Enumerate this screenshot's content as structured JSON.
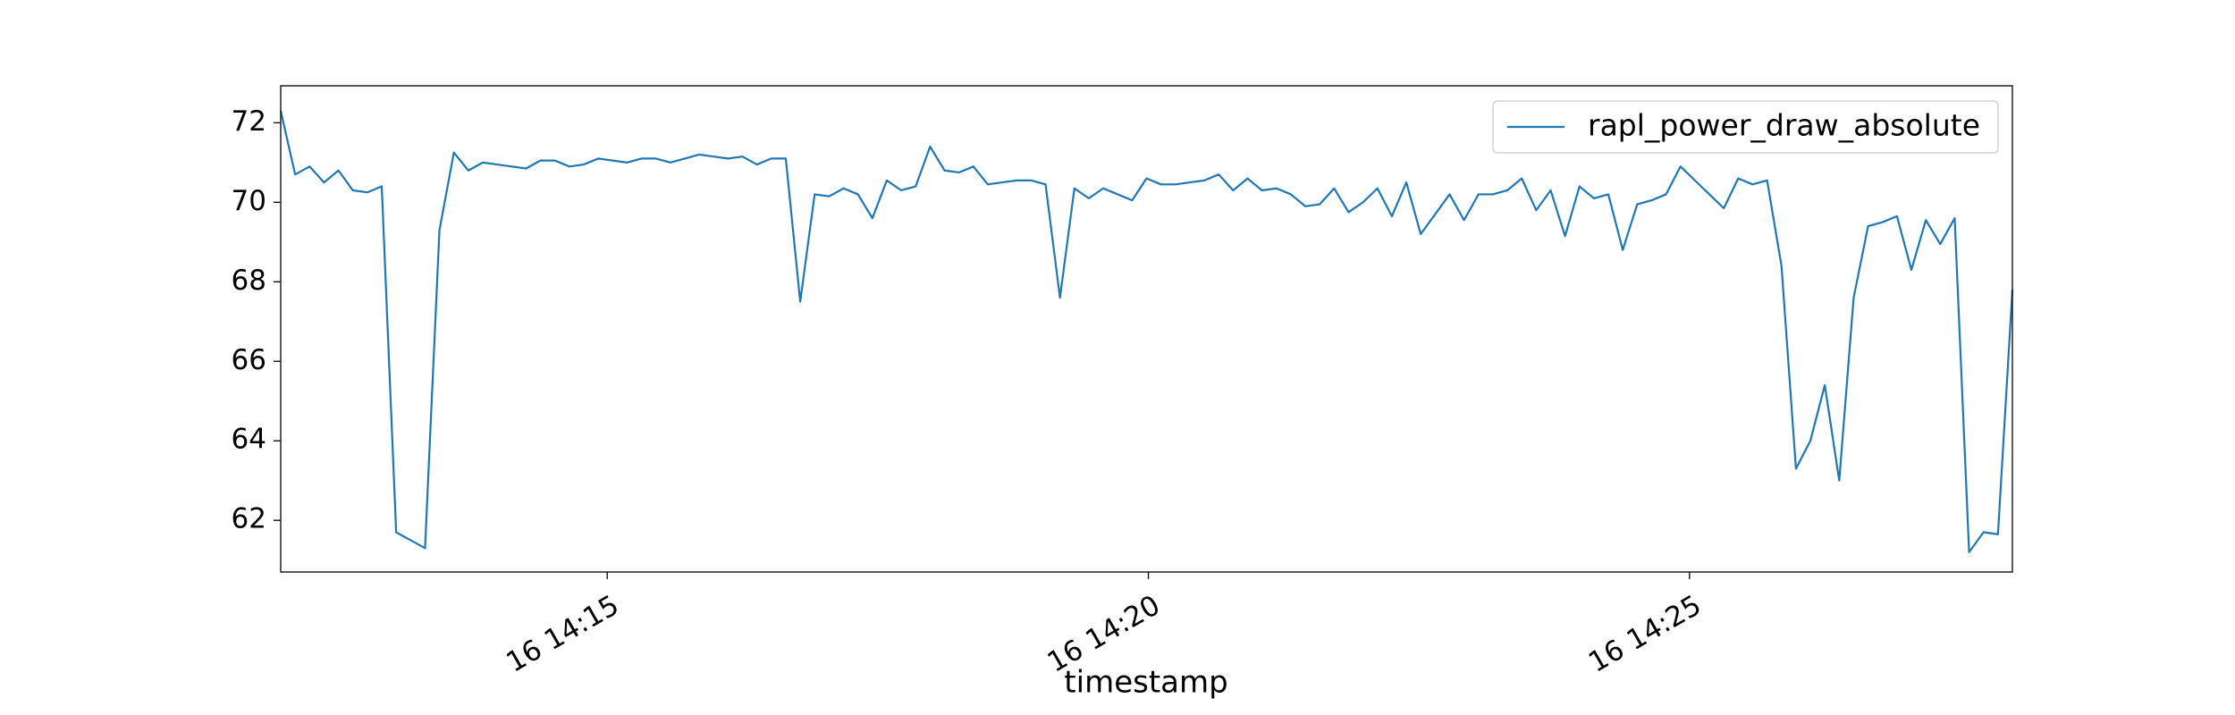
{
  "chart_data": {
    "type": "line",
    "x_label": "timestamp",
    "x": [
      719,
      727,
      735,
      743,
      751,
      759,
      767,
      775,
      783,
      791,
      799,
      807,
      815,
      823,
      831,
      839,
      847,
      855,
      863,
      871,
      879,
      887,
      895,
      903,
      911,
      919,
      927,
      935,
      943,
      951,
      959,
      967,
      975,
      983,
      991,
      999,
      1007,
      1015,
      1023,
      1031,
      1039,
      1047,
      1055,
      1063,
      1071,
      1079,
      1087,
      1095,
      1103,
      1111,
      1119,
      1127,
      1135,
      1143,
      1151,
      1159,
      1167,
      1175,
      1183,
      1191,
      1199,
      1207,
      1215,
      1223,
      1231,
      1239,
      1247,
      1255,
      1263,
      1271,
      1279,
      1287,
      1295,
      1303,
      1311,
      1319,
      1327,
      1335,
      1343,
      1351,
      1359,
      1367,
      1375,
      1383,
      1391,
      1399,
      1407,
      1415,
      1423,
      1431,
      1439,
      1447,
      1455,
      1463,
      1471,
      1479,
      1487,
      1495,
      1503,
      1511,
      1519,
      1527,
      1535,
      1543,
      1551,
      1559,
      1567,
      1575,
      1583,
      1591,
      1599,
      1607,
      1615,
      1623,
      1631,
      1639,
      1647,
      1655,
      1663,
      1671,
      1679
    ],
    "series": [
      {
        "name": "rapl_power_draw_absolute",
        "color": "#1f77b4",
        "values": [
          72.3,
          70.7,
          70.9,
          70.5,
          70.8,
          70.3,
          70.25,
          70.4,
          61.7,
          61.5,
          61.3,
          69.3,
          71.25,
          70.8,
          71.0,
          70.95,
          70.9,
          70.85,
          71.05,
          71.05,
          70.9,
          70.95,
          71.1,
          71.05,
          71.0,
          71.1,
          71.1,
          71.0,
          71.1,
          71.2,
          71.15,
          71.1,
          71.15,
          70.95,
          71.1,
          71.1,
          67.5,
          70.2,
          70.15,
          70.35,
          70.2,
          69.6,
          70.55,
          70.3,
          70.4,
          71.4,
          70.8,
          70.75,
          70.9,
          70.45,
          70.5,
          70.55,
          70.55,
          70.45,
          67.6,
          70.35,
          70.1,
          70.35,
          70.2,
          70.05,
          70.6,
          70.45,
          70.45,
          70.5,
          70.55,
          70.7,
          70.3,
          70.6,
          70.3,
          70.35,
          70.2,
          69.9,
          69.95,
          70.35,
          69.75,
          70.0,
          70.35,
          69.65,
          70.5,
          69.2,
          69.7,
          70.2,
          69.55,
          70.2,
          70.2,
          70.3,
          70.6,
          69.8,
          70.3,
          69.15,
          70.4,
          70.1,
          70.2,
          68.8,
          69.95,
          70.05,
          70.2,
          70.9,
          70.55,
          70.2,
          69.85,
          70.6,
          70.45,
          70.55,
          68.4,
          63.3,
          64.0,
          65.4,
          63.0,
          67.6,
          69.4,
          69.5,
          69.65,
          68.3,
          69.55,
          68.95,
          69.6,
          61.2,
          61.7,
          61.65,
          67.8
        ]
      }
    ],
    "xlim": [
      719,
      1679
    ],
    "xticks": [
      {
        "value": 900,
        "label": "16 14:15"
      },
      {
        "value": 1200,
        "label": "16 14:20"
      },
      {
        "value": 1500,
        "label": "16 14:25"
      }
    ],
    "ylim": [
      60.7,
      72.93
    ],
    "yticks": [
      62,
      64,
      66,
      68,
      70,
      72
    ],
    "legend": "upper right"
  }
}
